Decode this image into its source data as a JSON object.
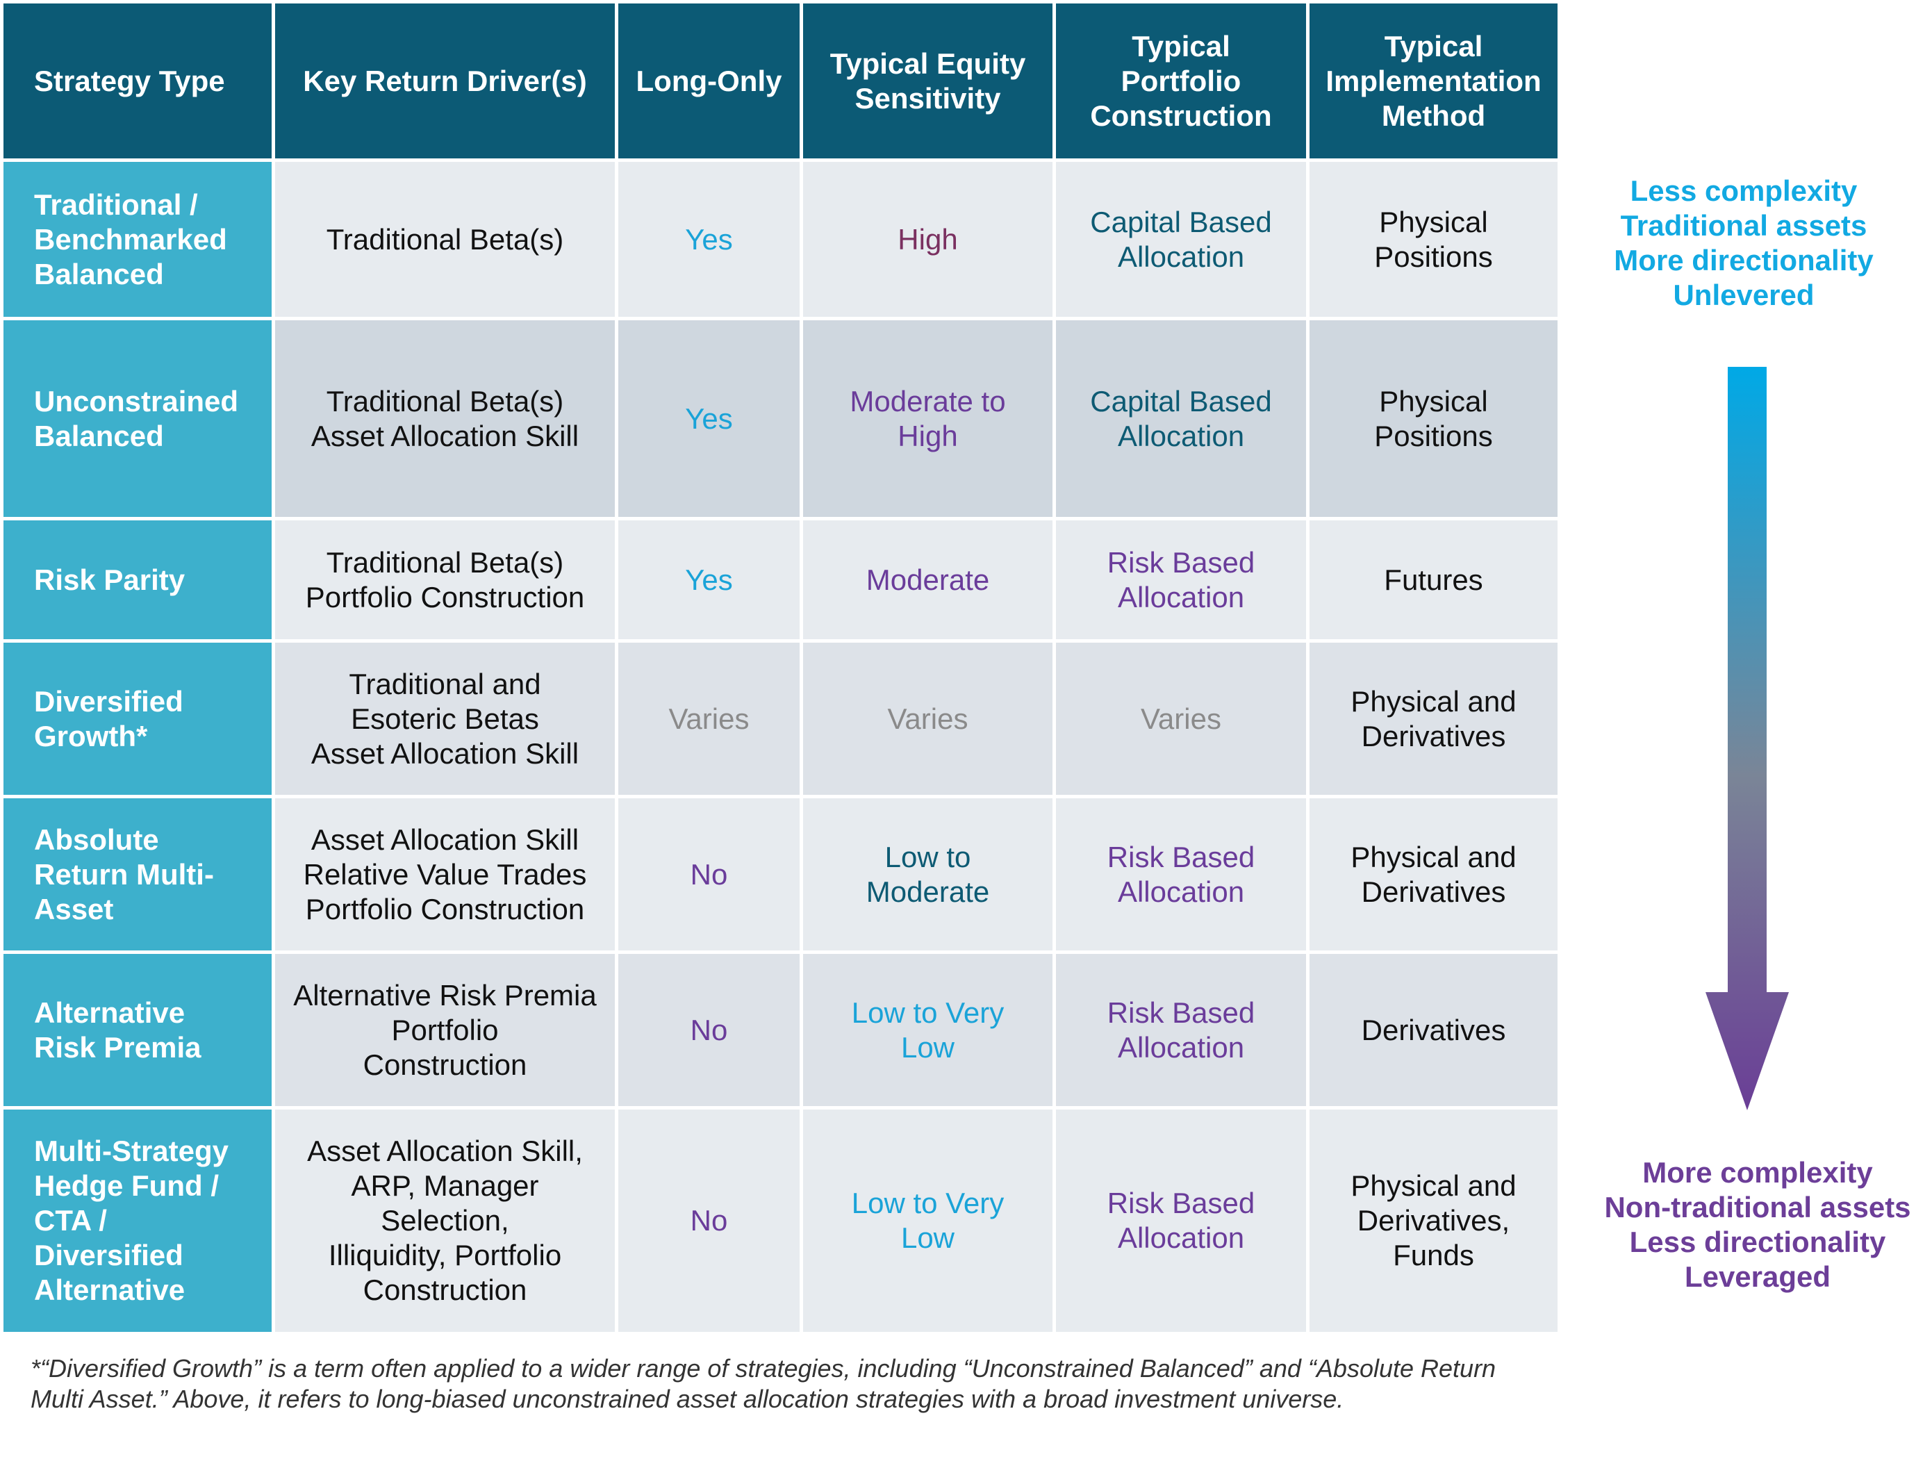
{
  "colors": {
    "header_bg": "#0c5a75",
    "label_bg": "#3db0cc",
    "row_light": "#e7ebef",
    "row_dark": "#cfd7df",
    "text_dark": "#111111",
    "text_teal": "#0d5a73",
    "text_cyan": "#1aa3d8",
    "text_purple": "#6a3c9a",
    "text_plum": "#7a3060",
    "text_gray": "#8a8a8a"
  },
  "table": {
    "headers": [
      "Strategy Type",
      "Key Return Driver(s)",
      "Long-Only",
      "Typical Equity\nSensitivity",
      "Typical\nPortfolio\nConstruction",
      "Typical\nImplementation\nMethod"
    ],
    "rows": [
      {
        "strategy": "Traditional /\nBenchmarked\nBalanced",
        "drivers": "Traditional Beta(s)",
        "long_only": "Yes",
        "equity_sensitivity": "High",
        "construction": "Capital Based\nAllocation",
        "implementation": "Physical\nPositions"
      },
      {
        "strategy": "Unconstrained\nBalanced",
        "drivers": "Traditional Beta(s)\nAsset Allocation Skill",
        "long_only": "Yes",
        "equity_sensitivity": "Moderate to\nHigh",
        "construction": "Capital Based\nAllocation",
        "implementation": "Physical\nPositions"
      },
      {
        "strategy": "Risk Parity",
        "drivers": "Traditional Beta(s)\nPortfolio Construction",
        "long_only": "Yes",
        "equity_sensitivity": "Moderate",
        "construction": "Risk Based\nAllocation",
        "implementation": "Futures"
      },
      {
        "strategy": "Diversified\nGrowth*",
        "drivers": "Traditional and\nEsoteric Betas\nAsset Allocation Skill",
        "long_only": "Varies",
        "equity_sensitivity": "Varies",
        "construction": "Varies",
        "implementation": "Physical and\nDerivatives"
      },
      {
        "strategy": "Absolute\nReturn Multi-\nAsset",
        "drivers": "Asset Allocation Skill\nRelative Value Trades\nPortfolio Construction",
        "long_only": "No",
        "equity_sensitivity": "Low to\nModerate",
        "construction": "Risk Based\nAllocation",
        "implementation": "Physical and\nDerivatives"
      },
      {
        "strategy": "Alternative\nRisk Premia",
        "drivers": "Alternative Risk Premia\nPortfolio\nConstruction",
        "long_only": "No",
        "equity_sensitivity": "Low to Very\nLow",
        "construction": "Risk Based\nAllocation",
        "implementation": "Derivatives"
      },
      {
        "strategy": "Multi-Strategy\nHedge Fund /\nCTA /\nDiversified\nAlternative",
        "drivers": "Asset Allocation Skill,\nARP, Manager\nSelection,\nIlliquidity, Portfolio\nConstruction",
        "long_only": "No",
        "equity_sensitivity": "Low to Very\nLow",
        "construction": "Risk Based\nAllocation",
        "implementation": "Physical and\nDerivatives,\nFunds"
      }
    ]
  },
  "scale": {
    "top_text": "Less complexity\nTraditional assets\nMore directionality\nUnlevered",
    "bottom_text": "More complexity\nNon-traditional assets\nLess directionality\nLeveraged",
    "top_color": "#12a9e2",
    "bottom_color": "#6c3e98"
  },
  "footnote": "*“Diversified Growth” is a term often applied to a wider range of strategies, including “Unconstrained Balanced” and “Absolute Return\nMulti Asset.” Above, it refers to long-biased unconstrained asset allocation strategies with a broad investment universe."
}
